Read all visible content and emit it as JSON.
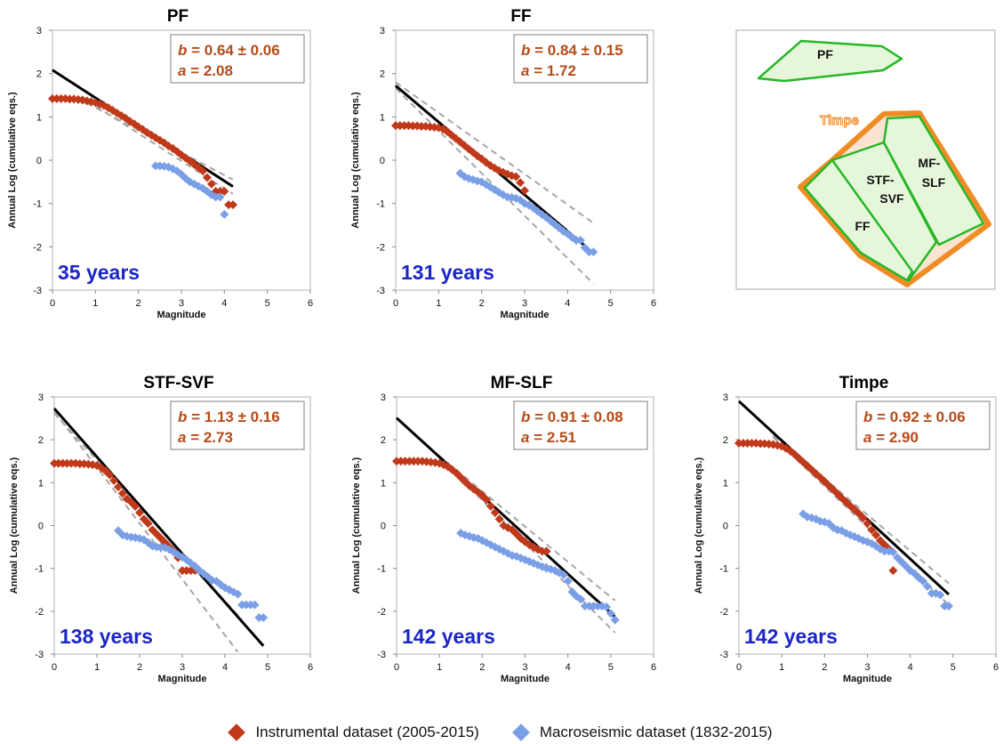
{
  "colors": {
    "instrumental": "#c0391b",
    "macroseismic": "#7b9fe6",
    "fit_line": "#000000",
    "confidence": "#a6a6a6",
    "stats_text": "#b64b18",
    "years_text": "#1b26c8",
    "map_fill": "#e6f6db",
    "map_stroke": "#26b826",
    "timpe_stroke": "#f08c25",
    "timpe_fill": "#fbe4d2"
  },
  "legend": {
    "instrumental_label": "Instrumental dataset (2005-2015)",
    "macroseismic_label": "Macroseismic dataset (1832-2015)"
  },
  "map": {
    "labels": {
      "pf": "PF",
      "timpe": "Timpe",
      "stf1": "STF-",
      "stf2": "SVF",
      "mf1": "MF-",
      "mf2": "SLF",
      "ff": "FF"
    }
  },
  "chart_data": [
    {
      "type": "scatter",
      "title": "PF",
      "xlabel": "Magnitude",
      "ylabel": "Annual Log (cumulative eqs.)",
      "xlim": [
        0,
        6
      ],
      "ylim": [
        -3,
        3
      ],
      "xticks": [
        0,
        1,
        2,
        3,
        4,
        5,
        6
      ],
      "yticks": [
        3,
        2,
        1,
        0,
        -1,
        -2,
        -3
      ],
      "b_text": "= 0.64 ± 0.06",
      "a_text": "= 2.08",
      "period": "35 years",
      "fit": {
        "a": 2.08,
        "b": 0.64,
        "x_range": [
          0,
          4.2
        ]
      },
      "confidence": [
        {
          "from": [
            0.8,
            1.32
          ],
          "to": [
            4.2,
            -0.45
          ]
        },
        {
          "from": [
            0.8,
            1.38
          ],
          "to": [
            4.2,
            -0.78
          ]
        }
      ],
      "series": [
        {
          "name": "Instrumental dataset (2005-2015)",
          "x": [
            0,
            0.1,
            0.2,
            0.3,
            0.4,
            0.5,
            0.6,
            0.7,
            0.8,
            0.9,
            1.0,
            1.1,
            1.2,
            1.3,
            1.4,
            1.5,
            1.6,
            1.7,
            1.8,
            1.9,
            2.0,
            2.1,
            2.2,
            2.3,
            2.4,
            2.5,
            2.6,
            2.7,
            2.8,
            2.9,
            3.0,
            3.1,
            3.2,
            3.3,
            3.4,
            3.5,
            3.6,
            3.7,
            3.8,
            3.9,
            4.0,
            4.1,
            4.2
          ],
          "y": [
            1.42,
            1.42,
            1.42,
            1.42,
            1.41,
            1.41,
            1.4,
            1.39,
            1.37,
            1.35,
            1.33,
            1.3,
            1.26,
            1.21,
            1.15,
            1.09,
            1.03,
            0.97,
            0.9,
            0.84,
            0.77,
            0.71,
            0.64,
            0.58,
            0.52,
            0.46,
            0.4,
            0.33,
            0.27,
            0.2,
            0.12,
            0.05,
            -0.02,
            -0.1,
            -0.17,
            -0.25,
            -0.4,
            -0.55,
            -0.72,
            -0.72,
            -0.72,
            -1.03,
            -1.03
          ]
        },
        {
          "name": "Macroseismic dataset (1832-2015)",
          "x": [
            2.4,
            2.5,
            2.6,
            2.7,
            2.8,
            2.9,
            3.0,
            3.1,
            3.2,
            3.3,
            3.4,
            3.5,
            3.6,
            3.7,
            3.8,
            3.9,
            4.0
          ],
          "y": [
            -0.13,
            -0.13,
            -0.14,
            -0.16,
            -0.2,
            -0.25,
            -0.33,
            -0.42,
            -0.5,
            -0.55,
            -0.6,
            -0.65,
            -0.72,
            -0.8,
            -0.85,
            -0.85,
            -1.25
          ]
        }
      ]
    },
    {
      "type": "scatter",
      "title": "FF",
      "xlabel": "Magnitude",
      "ylabel": "Annual Log (cumulative eqs.)",
      "xlim": [
        0,
        6
      ],
      "ylim": [
        -3,
        3
      ],
      "xticks": [
        0,
        1,
        2,
        3,
        4,
        5,
        6
      ],
      "yticks": [
        3,
        2,
        1,
        0,
        -1,
        -2,
        -3
      ],
      "b_text": "= 0.84 ± 0.15",
      "a_text": "= 1.72",
      "period": "131 years",
      "fit": {
        "a": 1.72,
        "b": 0.84,
        "x_range": [
          0,
          4.6
        ]
      },
      "confidence": [
        {
          "from": [
            0,
            1.8
          ],
          "to": [
            4.6,
            -1.45
          ]
        },
        {
          "from": [
            0,
            1.66
          ],
          "to": [
            4.6,
            -2.85
          ]
        }
      ],
      "series": [
        {
          "name": "Instrumental dataset (2005-2015)",
          "x": [
            0,
            0.1,
            0.2,
            0.3,
            0.4,
            0.5,
            0.6,
            0.7,
            0.8,
            0.9,
            1.0,
            1.1,
            1.2,
            1.3,
            1.4,
            1.5,
            1.6,
            1.7,
            1.8,
            1.9,
            2.0,
            2.1,
            2.2,
            2.3,
            2.4,
            2.5,
            2.6,
            2.7,
            2.8,
            2.9,
            3.0
          ],
          "y": [
            0.8,
            0.8,
            0.8,
            0.8,
            0.79,
            0.79,
            0.78,
            0.78,
            0.77,
            0.76,
            0.75,
            0.72,
            0.66,
            0.58,
            0.5,
            0.42,
            0.34,
            0.26,
            0.18,
            0.1,
            0.03,
            -0.05,
            -0.12,
            -0.18,
            -0.24,
            -0.28,
            -0.32,
            -0.36,
            -0.38,
            -0.52,
            -0.7
          ]
        },
        {
          "name": "Macroseismic dataset (1832-2015)",
          "x": [
            1.5,
            1.6,
            1.7,
            1.8,
            1.9,
            2.0,
            2.1,
            2.2,
            2.3,
            2.4,
            2.5,
            2.6,
            2.7,
            2.8,
            2.9,
            3.0,
            3.1,
            3.2,
            3.3,
            3.4,
            3.5,
            3.6,
            3.7,
            3.8,
            3.9,
            4.0,
            4.1,
            4.2,
            4.3,
            4.4,
            4.5,
            4.6
          ],
          "y": [
            -0.3,
            -0.38,
            -0.42,
            -0.45,
            -0.48,
            -0.5,
            -0.56,
            -0.62,
            -0.68,
            -0.74,
            -0.8,
            -0.85,
            -0.86,
            -0.88,
            -0.92,
            -1.0,
            -1.04,
            -1.1,
            -1.18,
            -1.25,
            -1.32,
            -1.4,
            -1.48,
            -1.56,
            -1.64,
            -1.7,
            -1.78,
            -1.85,
            -1.85,
            -2.02,
            -2.12,
            -2.12
          ]
        }
      ]
    },
    {
      "type": "scatter",
      "title": "STF-SVF",
      "xlabel": "Magnitude",
      "ylabel": "Annual Log (cumulative eqs.)",
      "xlim": [
        0,
        6
      ],
      "ylim": [
        -3,
        3
      ],
      "xticks": [
        0,
        1,
        2,
        3,
        4,
        5,
        6
      ],
      "yticks": [
        3,
        2,
        1,
        0,
        -1,
        -2,
        -3
      ],
      "b_text": "= 1.13 ± 0.16",
      "a_text": "= 2.73",
      "period": "138 years",
      "fit": {
        "a": 2.73,
        "b": 1.13,
        "x_range": [
          0,
          4.9
        ]
      },
      "confidence": [
        {
          "from": [
            0,
            2.62
          ],
          "to": [
            4.4,
            -2.2
          ]
        },
        {
          "from": [
            0,
            2.66
          ],
          "to": [
            4.3,
            -2.95
          ]
        }
      ],
      "series": [
        {
          "name": "Instrumental dataset (2005-2015)",
          "x": [
            0,
            0.1,
            0.2,
            0.3,
            0.4,
            0.5,
            0.6,
            0.7,
            0.8,
            0.9,
            1.0,
            1.1,
            1.2,
            1.3,
            1.4,
            1.5,
            1.6,
            1.7,
            1.8,
            1.9,
            2.0,
            2.1,
            2.2,
            2.3,
            2.4,
            2.5,
            2.6,
            2.7,
            2.8,
            2.9,
            3.0,
            3.1,
            3.2,
            3.3,
            3.4
          ],
          "y": [
            1.45,
            1.45,
            1.45,
            1.45,
            1.45,
            1.45,
            1.44,
            1.44,
            1.43,
            1.42,
            1.4,
            1.35,
            1.28,
            1.18,
            1.05,
            0.9,
            0.75,
            0.62,
            0.55,
            0.45,
            0.3,
            0.15,
            0.05,
            -0.1,
            -0.2,
            -0.3,
            -0.4,
            -0.5,
            -0.6,
            -0.75,
            -1.05,
            -1.05,
            -1.05,
            -1.05,
            -1.05
          ]
        },
        {
          "name": "Macroseismic dataset (1832-2015)",
          "x": [
            1.5,
            1.6,
            1.7,
            1.8,
            1.9,
            2.0,
            2.1,
            2.2,
            2.3,
            2.4,
            2.5,
            2.6,
            2.7,
            2.8,
            2.9,
            3.0,
            3.1,
            3.2,
            3.3,
            3.4,
            3.5,
            3.6,
            3.7,
            3.8,
            3.9,
            4.0,
            4.1,
            4.2,
            4.3,
            4.4,
            4.5,
            4.6,
            4.7,
            4.8,
            4.9
          ],
          "y": [
            -0.12,
            -0.22,
            -0.25,
            -0.27,
            -0.28,
            -0.3,
            -0.33,
            -0.4,
            -0.48,
            -0.5,
            -0.5,
            -0.52,
            -0.56,
            -0.62,
            -0.68,
            -0.74,
            -0.8,
            -0.88,
            -0.95,
            -1.05,
            -1.12,
            -1.2,
            -1.28,
            -1.3,
            -1.38,
            -1.45,
            -1.5,
            -1.55,
            -1.6,
            -1.85,
            -1.85,
            -1.85,
            -1.85,
            -2.15,
            -2.15
          ]
        }
      ]
    },
    {
      "type": "scatter",
      "title": "MF-SLF",
      "xlabel": "Magnitude",
      "ylabel": "Annual Log (cumulative eqs.)",
      "xlim": [
        0,
        6
      ],
      "ylim": [
        -3,
        3
      ],
      "xticks": [
        0,
        1,
        2,
        3,
        4,
        5,
        6
      ],
      "yticks": [
        3,
        2,
        1,
        0,
        -1,
        -2,
        -3
      ],
      "b_text": "= 0.91 ± 0.08",
      "a_text": "= 2.51",
      "period": "142 years",
      "fit": {
        "a": 2.51,
        "b": 0.91,
        "x_range": [
          0,
          5.1
        ]
      },
      "confidence": [
        {
          "from": [
            1.0,
            1.62
          ],
          "to": [
            5.1,
            -1.75
          ]
        },
        {
          "from": [
            1.0,
            1.58
          ],
          "to": [
            5.1,
            -2.5
          ]
        }
      ],
      "series": [
        {
          "name": "Instrumental dataset (2005-2015)",
          "x": [
            0,
            0.1,
            0.2,
            0.3,
            0.4,
            0.5,
            0.6,
            0.7,
            0.8,
            0.9,
            1.0,
            1.1,
            1.2,
            1.3,
            1.4,
            1.5,
            1.6,
            1.7,
            1.8,
            1.9,
            2.0,
            2.1,
            2.2,
            2.3,
            2.4,
            2.5,
            2.6,
            2.7,
            2.8,
            2.9,
            3.0,
            3.1,
            3.2,
            3.3,
            3.4,
            3.5
          ],
          "y": [
            1.5,
            1.5,
            1.5,
            1.5,
            1.5,
            1.5,
            1.5,
            1.49,
            1.48,
            1.47,
            1.45,
            1.42,
            1.37,
            1.3,
            1.22,
            1.12,
            1.02,
            0.93,
            0.85,
            0.78,
            0.7,
            0.6,
            0.45,
            0.3,
            0.15,
            0.0,
            -0.05,
            -0.1,
            -0.2,
            -0.3,
            -0.38,
            -0.45,
            -0.5,
            -0.56,
            -0.6,
            -0.6
          ]
        },
        {
          "name": "Macroseismic dataset (1832-2015)",
          "x": [
            1.5,
            1.6,
            1.7,
            1.8,
            1.9,
            2.0,
            2.1,
            2.2,
            2.3,
            2.4,
            2.5,
            2.6,
            2.7,
            2.8,
            2.9,
            3.0,
            3.1,
            3.2,
            3.3,
            3.4,
            3.5,
            3.6,
            3.7,
            3.8,
            3.9,
            4.0,
            4.1,
            4.2,
            4.3,
            4.4,
            4.5,
            4.6,
            4.7,
            4.8,
            4.9,
            5.0,
            5.1
          ],
          "y": [
            -0.18,
            -0.22,
            -0.25,
            -0.28,
            -0.3,
            -0.35,
            -0.4,
            -0.45,
            -0.5,
            -0.55,
            -0.6,
            -0.65,
            -0.7,
            -0.72,
            -0.76,
            -0.8,
            -0.84,
            -0.88,
            -0.92,
            -0.96,
            -1.0,
            -1.02,
            -1.05,
            -1.1,
            -1.15,
            -1.3,
            -1.55,
            -1.65,
            -1.72,
            -1.88,
            -1.88,
            -1.88,
            -1.88,
            -1.88,
            -1.9,
            -2.05,
            -2.2
          ]
        }
      ]
    },
    {
      "type": "scatter",
      "title": "Timpe",
      "xlabel": "Magnitude",
      "ylabel": "Annual Log (cumulative eqs.)",
      "xlim": [
        0,
        6
      ],
      "ylim": [
        -3,
        3
      ],
      "xticks": [
        0,
        1,
        2,
        3,
        4,
        5,
        6
      ],
      "yticks": [
        3,
        2,
        1,
        0,
        -1,
        -2,
        -3
      ],
      "b_text": "= 0.92 ± 0.06",
      "a_text": "= 2.90",
      "period": "142 years",
      "fit": {
        "a": 2.9,
        "b": 0.92,
        "x_range": [
          0,
          4.9
        ]
      },
      "confidence": [
        {
          "from": [
            0.8,
            2.1
          ],
          "to": [
            4.9,
            -1.35
          ]
        },
        {
          "from": [
            0.8,
            2.06
          ],
          "to": [
            4.9,
            -1.85
          ]
        }
      ],
      "series": [
        {
          "name": "Instrumental dataset (2005-2015)",
          "x": [
            0,
            0.1,
            0.2,
            0.3,
            0.4,
            0.5,
            0.6,
            0.7,
            0.8,
            0.9,
            1.0,
            1.1,
            1.2,
            1.3,
            1.4,
            1.5,
            1.6,
            1.7,
            1.8,
            1.9,
            2.0,
            2.1,
            2.2,
            2.3,
            2.4,
            2.5,
            2.6,
            2.7,
            2.8,
            2.9,
            3.0,
            3.1,
            3.2,
            3.3,
            3.4,
            3.5,
            3.6
          ],
          "y": [
            1.92,
            1.92,
            1.92,
            1.92,
            1.92,
            1.91,
            1.91,
            1.9,
            1.89,
            1.87,
            1.85,
            1.8,
            1.74,
            1.66,
            1.57,
            1.48,
            1.39,
            1.3,
            1.21,
            1.12,
            1.03,
            0.93,
            0.84,
            0.74,
            0.64,
            0.55,
            0.46,
            0.37,
            0.28,
            0.18,
            0.05,
            -0.1,
            -0.22,
            -0.35,
            -0.45,
            -0.55,
            -1.05
          ]
        },
        {
          "name": "Macroseismic dataset (1832-2015)",
          "x": [
            1.5,
            1.6,
            1.7,
            1.8,
            1.9,
            2.0,
            2.1,
            2.2,
            2.3,
            2.4,
            2.5,
            2.6,
            2.7,
            2.8,
            2.9,
            3.0,
            3.1,
            3.2,
            3.3,
            3.4,
            3.5,
            3.6,
            3.7,
            3.8,
            3.9,
            4.0,
            4.1,
            4.2,
            4.3,
            4.4,
            4.5,
            4.6,
            4.7,
            4.8,
            4.9
          ],
          "y": [
            0.27,
            0.2,
            0.18,
            0.15,
            0.1,
            0.08,
            0.05,
            -0.05,
            -0.1,
            -0.12,
            -0.18,
            -0.22,
            -0.26,
            -0.3,
            -0.35,
            -0.38,
            -0.42,
            -0.48,
            -0.55,
            -0.6,
            -0.6,
            -0.62,
            -0.75,
            -0.85,
            -0.95,
            -1.05,
            -1.12,
            -1.22,
            -1.3,
            -1.42,
            -1.58,
            -1.58,
            -1.62,
            -1.88,
            -1.88
          ]
        }
      ]
    }
  ]
}
